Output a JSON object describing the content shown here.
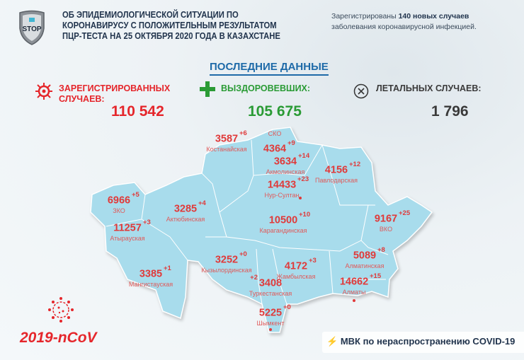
{
  "header": {
    "logo_text": "STOP",
    "title_lines": [
      "ОБ ЭПИДЕМИОЛОГИЧЕСКОЙ СИТУАЦИИ ПО",
      "КОРОНАВИРУСУ С ПОЛОЖИТЕЛЬНЫМ РЕЗУЛЬТАТОМ",
      "ПЦР-ТЕСТА НА 25 ОКТЯБРЯ 2020 ГОДА В КАЗАХСТАНЕ"
    ],
    "note": {
      "prefix": "Зарегистрированы ",
      "count": "140 новых случаев",
      "suffix": "заболевания коронавирусной инфекцией."
    }
  },
  "latest_label": "ПОСЛЕДНИЕ ДАННЫЕ",
  "stats": {
    "registered": {
      "label_1": "ЗАРЕГИСТРИРОВАННЫХ",
      "label_2": "СЛУЧАЕВ:",
      "value": "110 542",
      "color": "#e5262b",
      "icon": "virus-icon"
    },
    "recovered": {
      "label": "ВЫЗДОРОВЕВШИХ:",
      "value": "105 675",
      "color": "#2a9b35",
      "icon": "plus-icon"
    },
    "deaths": {
      "label": "ЛЕТАЛЬНЫХ СЛУЧАЕВ:",
      "value": "1 796",
      "color": "#3a3a3a",
      "icon": "x-circle-icon"
    }
  },
  "regions": [
    {
      "name": "СКО",
      "total": "4364",
      "new": "+9"
    },
    {
      "name": "Костанайская",
      "total": "3587",
      "new": "+6"
    },
    {
      "name": "Акмолинская",
      "total": "3634",
      "new": "+14"
    },
    {
      "name": "Павлодарская",
      "total": "4156",
      "new": "+12"
    },
    {
      "name": "Нур-Султан",
      "total": "14433",
      "new": "+23"
    },
    {
      "name": "ЗКО",
      "total": "6966",
      "new": "+5"
    },
    {
      "name": "Актюбинская",
      "total": "3285",
      "new": "+4"
    },
    {
      "name": "Карагандинская",
      "total": "10500",
      "new": "+10"
    },
    {
      "name": "ВКО",
      "total": "9167",
      "new": "+25"
    },
    {
      "name": "Атырауская",
      "total": "11257",
      "new": "+3"
    },
    {
      "name": "Алматинская",
      "total": "5089",
      "new": "+8"
    },
    {
      "name": "Кызылординская",
      "total": "3252",
      "new": "+0"
    },
    {
      "name": "Жамбылская",
      "total": "4172",
      "new": "+3"
    },
    {
      "name": "Мангистауская",
      "total": "3385",
      "new": "+1"
    },
    {
      "name": "Туркестанская",
      "total": "3408",
      "new": "+2"
    },
    {
      "name": "Алматы",
      "total": "14662",
      "new": "+15"
    },
    {
      "name": "Шымкент",
      "total": "5225",
      "new": "+0"
    }
  ],
  "footer": {
    "ncov": "2019-nCoV",
    "org": "МВК по нераспространению COVID-19",
    "org_icon": "lightning-icon"
  }
}
